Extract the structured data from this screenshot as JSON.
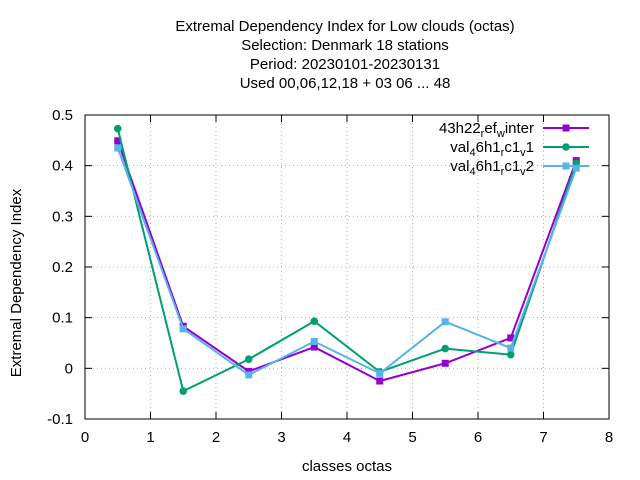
{
  "chart_data": {
    "type": "line",
    "title_lines": [
      "Extremal Dependency Index  for Low clouds (octas)",
      "Selection: Denmark     18 stations",
      "Period: 20230101-20230131",
      "Used  00,06,12,18  + 03 06 ... 48"
    ],
    "xlabel": "classes octas",
    "ylabel": "Extremal Dependency Index",
    "xlim": [
      0,
      8
    ],
    "ylim": [
      -0.1,
      0.5
    ],
    "xticks": [
      "0",
      "1",
      "2",
      "3",
      "4",
      "5",
      "6",
      "7",
      "8"
    ],
    "yticks": [
      "-0.1",
      "0",
      "0.1",
      "0.2",
      "0.3",
      "0.4",
      "0.5"
    ],
    "grid": true,
    "legend_position": "top-right",
    "x": [
      0.5,
      1.5,
      2.5,
      3.5,
      4.5,
      5.5,
      6.5,
      7.5
    ],
    "series": [
      {
        "name": "43h22_ref_winter",
        "legend_parts": [
          [
            "43h22",
            "n"
          ],
          [
            "r",
            "sub"
          ],
          [
            "ef",
            "n"
          ],
          [
            "w",
            "sub"
          ],
          [
            "inter",
            "n"
          ]
        ],
        "color": "#9400d3",
        "marker": "square",
        "values": [
          0.449,
          0.083,
          -0.006,
          0.042,
          -0.025,
          0.01,
          0.06,
          0.41
        ]
      },
      {
        "name": "val_46h1_rc1_v1",
        "legend_parts": [
          [
            "val",
            "n"
          ],
          [
            "4",
            "sub"
          ],
          [
            "6h1",
            "n"
          ],
          [
            "r",
            "sub"
          ],
          [
            "c1",
            "n"
          ],
          [
            "v",
            "sub"
          ],
          [
            "1",
            "n"
          ]
        ],
        "color": "#009e73",
        "marker": "circle",
        "values": [
          0.473,
          -0.045,
          0.018,
          0.093,
          -0.007,
          0.039,
          0.027,
          0.405
        ]
      },
      {
        "name": "val_46h1_rc1_v2",
        "legend_parts": [
          [
            "val",
            "n"
          ],
          [
            "4",
            "sub"
          ],
          [
            "6h1",
            "n"
          ],
          [
            "r",
            "sub"
          ],
          [
            "c1",
            "n"
          ],
          [
            "v",
            "sub"
          ],
          [
            "2",
            "n"
          ]
        ],
        "color": "#56b4e9",
        "marker": "square",
        "values": [
          0.435,
          0.078,
          -0.013,
          0.053,
          -0.01,
          0.092,
          0.04,
          0.395
        ]
      }
    ]
  }
}
